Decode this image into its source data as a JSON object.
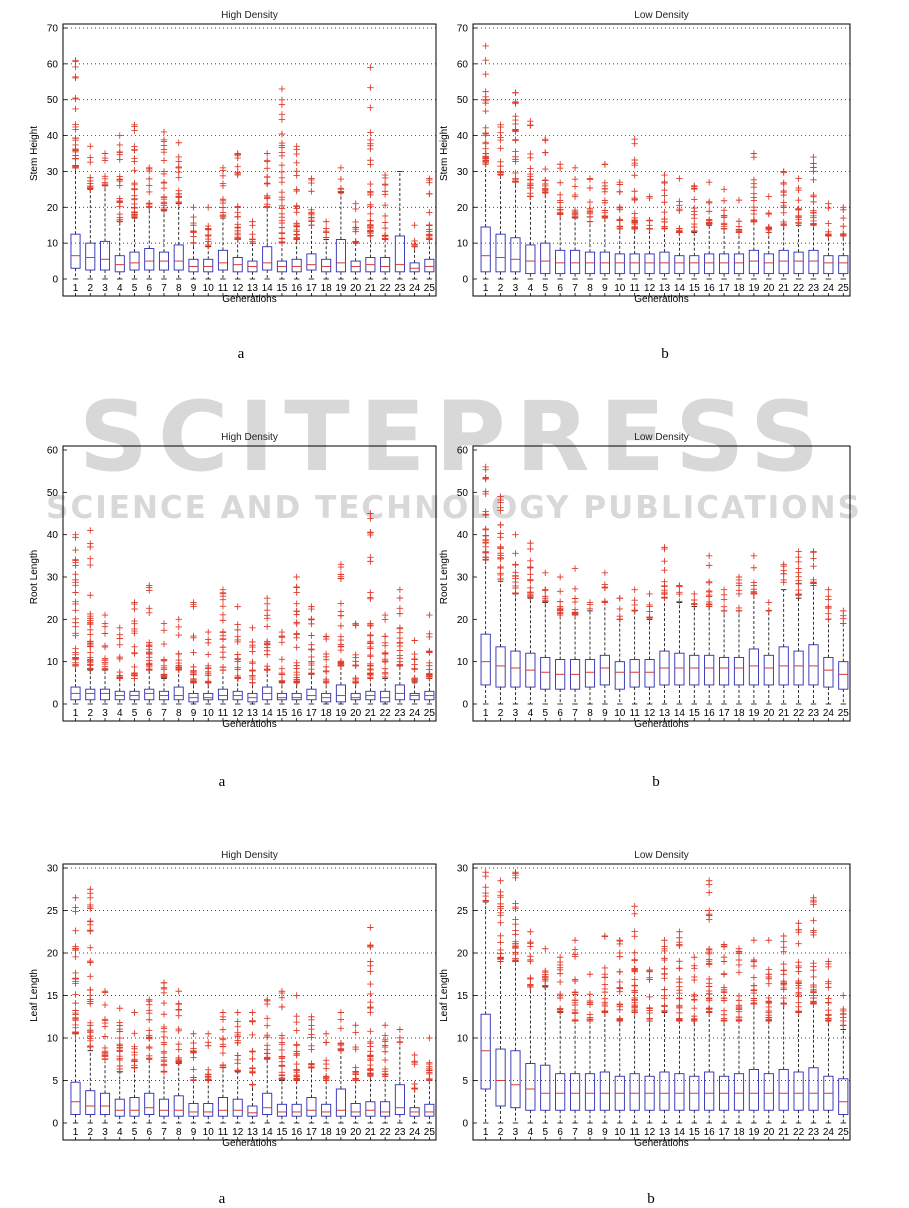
{
  "watermark": {
    "name": "SCITEPRESS",
    "tagline": "SCIENCE AND TECHNOLOGY PUBLICATIONS"
  },
  "colors": {
    "box": "#2b2bb5",
    "median": "#d33a3a",
    "outlier": "#e03c2c",
    "whisker": "#000000",
    "grid": "#000000",
    "watermark": "#d8d8d8"
  },
  "chart_data": [
    {
      "type": "boxplot",
      "panel": "a",
      "title": "High Density",
      "xlabel": "Generations",
      "ylabel": "Stem Height",
      "categories": [
        1,
        2,
        3,
        4,
        5,
        6,
        7,
        8,
        9,
        10,
        11,
        12,
        13,
        14,
        15,
        16,
        17,
        18,
        19,
        20,
        21,
        22,
        23,
        24,
        25
      ],
      "ylim": [
        0,
        70
      ],
      "yticks": [
        0,
        10,
        20,
        30,
        40,
        50,
        60,
        70
      ],
      "grid": "horizontal dotted",
      "q1": [
        3.0,
        2.5,
        2.5,
        2.0,
        2.5,
        2.5,
        2.5,
        2.5,
        2.0,
        2.0,
        2.5,
        2.0,
        2.0,
        2.5,
        2.0,
        2.0,
        2.5,
        2.0,
        2.0,
        2.0,
        2.0,
        2.0,
        2.0,
        2.0,
        2.0
      ],
      "median": [
        6.5,
        6.0,
        5.5,
        4.0,
        4.5,
        5.0,
        5.0,
        5.0,
        3.5,
        3.5,
        4.5,
        4.0,
        3.5,
        4.5,
        3.5,
        3.5,
        4.0,
        3.5,
        4.5,
        3.5,
        4.0,
        3.5,
        4.0,
        3.0,
        3.5
      ],
      "q3": [
        12.5,
        10.0,
        10.5,
        6.5,
        7.5,
        8.5,
        7.5,
        9.5,
        5.5,
        5.5,
        8.0,
        6.0,
        5.0,
        9.0,
        5.0,
        5.5,
        7.0,
        5.5,
        11.0,
        5.0,
        6.0,
        6.0,
        12.0,
        4.5,
        5.5
      ],
      "whisker_low": [
        0,
        0,
        0,
        0,
        0,
        0,
        0,
        0,
        0,
        0,
        0,
        0,
        0,
        0,
        0,
        0,
        0,
        0,
        0,
        0,
        0,
        0,
        0,
        0,
        0
      ],
      "whisker_high": [
        31,
        25,
        26,
        16,
        17,
        20,
        19,
        21,
        10,
        9,
        17,
        11,
        10,
        20,
        10,
        11,
        15,
        11,
        24,
        10,
        12,
        11,
        30,
        9,
        11
      ],
      "outlier_max": [
        61,
        37,
        35,
        40,
        43,
        31,
        41,
        38,
        20,
        20,
        31,
        35,
        16,
        35,
        53,
        37,
        28,
        16,
        31,
        21,
        59,
        29,
        30,
        15,
        28
      ]
    },
    {
      "type": "boxplot",
      "panel": "b",
      "title": "Low Density",
      "xlabel": "Generations",
      "ylabel": "Stem Height",
      "categories": [
        1,
        2,
        3,
        4,
        5,
        6,
        7,
        8,
        9,
        10,
        11,
        12,
        13,
        14,
        15,
        16,
        17,
        18,
        19,
        20,
        21,
        22,
        23,
        24,
        25
      ],
      "ylim": [
        0,
        70
      ],
      "yticks": [
        0,
        10,
        20,
        30,
        40,
        50,
        60,
        70
      ],
      "grid": "horizontal dotted",
      "q1": [
        2.0,
        2.0,
        2.0,
        1.5,
        1.5,
        1.5,
        1.5,
        1.5,
        1.5,
        1.5,
        1.5,
        1.5,
        1.5,
        1.5,
        1.5,
        1.5,
        1.5,
        1.5,
        1.5,
        1.5,
        1.5,
        1.5,
        1.5,
        1.5,
        1.5
      ],
      "median": [
        6.5,
        6.0,
        5.5,
        5.0,
        5.0,
        4.5,
        4.5,
        4.5,
        4.5,
        4.5,
        4.5,
        4.5,
        4.5,
        4.5,
        4.5,
        4.5,
        4.5,
        4.5,
        5.0,
        4.5,
        5.0,
        5.0,
        5.0,
        4.5,
        4.5
      ],
      "q3": [
        14.5,
        12.5,
        11.5,
        9.5,
        10.0,
        8.0,
        8.0,
        7.5,
        7.5,
        7.0,
        7.0,
        7.0,
        7.5,
        6.5,
        6.5,
        7.0,
        7.0,
        7.0,
        8.0,
        7.0,
        8.0,
        7.5,
        8.0,
        6.5,
        6.5
      ],
      "whisker_low": [
        0,
        0,
        0,
        0,
        0,
        0,
        0,
        0,
        0,
        0,
        0,
        0,
        0,
        0,
        0,
        0,
        0,
        0,
        0,
        0,
        0,
        0,
        0,
        0,
        0
      ],
      "whisker_high": [
        32,
        29,
        27,
        23,
        24,
        18,
        17,
        16,
        17,
        14,
        14,
        14,
        14,
        13,
        13,
        15,
        14,
        13,
        16,
        13,
        15,
        15,
        15,
        12,
        12
      ],
      "outlier_max": [
        65,
        43,
        52,
        44,
        39,
        32,
        31,
        28,
        32,
        27,
        39,
        23,
        29,
        28,
        26,
        27,
        25,
        22,
        35,
        23,
        30,
        28,
        34,
        21,
        20
      ]
    },
    {
      "type": "boxplot",
      "panel": "a",
      "title": "High Density",
      "xlabel": "Generations",
      "ylabel": "Root Length",
      "categories": [
        1,
        2,
        3,
        4,
        5,
        6,
        7,
        8,
        9,
        10,
        11,
        12,
        13,
        14,
        15,
        16,
        17,
        18,
        19,
        20,
        21,
        22,
        23,
        24,
        25
      ],
      "ylim": [
        0,
        60
      ],
      "yticks": [
        0,
        10,
        20,
        30,
        40,
        50,
        60
      ],
      "grid": "none",
      "q1": [
        1.0,
        1.0,
        1.0,
        1.0,
        1.0,
        1.0,
        1.0,
        1.0,
        0.5,
        1.0,
        1.0,
        1.0,
        0.5,
        1.0,
        1.0,
        1.0,
        1.0,
        0.5,
        0.5,
        1.0,
        1.0,
        0.5,
        1.0,
        1.0,
        1.0
      ],
      "median": [
        2.5,
        2.5,
        2.5,
        2.0,
        2.0,
        2.5,
        2.0,
        2.0,
        1.5,
        1.5,
        2.0,
        2.0,
        1.5,
        2.5,
        1.5,
        1.5,
        2.0,
        1.5,
        2.0,
        1.5,
        2.0,
        1.5,
        2.5,
        2.0,
        2.0
      ],
      "q3": [
        4.0,
        3.5,
        3.5,
        3.0,
        3.0,
        3.5,
        3.0,
        4.0,
        2.5,
        2.5,
        3.5,
        3.0,
        2.5,
        4.0,
        2.5,
        2.5,
        3.5,
        2.5,
        4.5,
        2.5,
        3.0,
        3.0,
        4.5,
        2.5,
        3.0
      ],
      "whisker_low": [
        0,
        0,
        0,
        0,
        0,
        0,
        0,
        0,
        0,
        0,
        0,
        0,
        0,
        0,
        0,
        0,
        0,
        0,
        0,
        0,
        0,
        0,
        0,
        0,
        0
      ],
      "whisker_high": [
        9,
        8,
        8,
        6,
        6,
        8,
        6,
        8,
        5,
        5,
        8,
        6,
        5,
        8,
        5,
        5,
        7,
        5,
        9,
        5,
        6,
        6,
        9,
        5,
        6
      ],
      "outlier_max": [
        40,
        41,
        21,
        18,
        24,
        28,
        19,
        20,
        24,
        17,
        27,
        23,
        18,
        25,
        17,
        30,
        23,
        16,
        33,
        19,
        45,
        21,
        27,
        15,
        21
      ]
    },
    {
      "type": "boxplot",
      "panel": "b",
      "title": "Low Density",
      "xlabel": "Generations",
      "ylabel": "Root Length",
      "categories": [
        1,
        2,
        3,
        4,
        5,
        6,
        7,
        8,
        9,
        10,
        11,
        12,
        13,
        14,
        15,
        16,
        17,
        18,
        19,
        20,
        21,
        22,
        23,
        24,
        25
      ],
      "ylim": [
        0,
        60
      ],
      "yticks": [
        0,
        10,
        20,
        30,
        40,
        50,
        60
      ],
      "grid": "none",
      "q1": [
        4.5,
        4.0,
        4.0,
        4.0,
        3.5,
        3.5,
        3.5,
        4.0,
        4.5,
        3.5,
        4.0,
        4.0,
        4.5,
        4.5,
        4.5,
        4.5,
        4.5,
        4.5,
        4.5,
        4.5,
        4.5,
        4.5,
        4.5,
        4.0,
        3.5
      ],
      "median": [
        10.0,
        9.0,
        8.5,
        8.0,
        7.5,
        7.0,
        7.0,
        7.5,
        8.5,
        7.5,
        7.5,
        7.5,
        8.5,
        8.5,
        8.5,
        8.5,
        8.5,
        8.5,
        9.0,
        8.5,
        9.0,
        9.0,
        9.0,
        8.0,
        7.0
      ],
      "q3": [
        16.5,
        13.5,
        12.5,
        12.0,
        11.0,
        10.5,
        10.5,
        10.5,
        11.5,
        10.0,
        10.5,
        10.5,
        12.5,
        12.0,
        11.5,
        11.5,
        11.0,
        11.0,
        13.0,
        11.5,
        13.5,
        12.5,
        14.0,
        11.0,
        10.0
      ],
      "whisker_low": [
        0,
        0,
        0,
        0,
        0,
        0,
        0,
        0,
        0,
        0,
        0,
        0,
        0,
        0,
        0,
        0,
        0,
        0,
        0,
        0,
        0,
        0,
        0,
        0,
        0
      ],
      "whisker_high": [
        34,
        29,
        26,
        25,
        24,
        21,
        21,
        22,
        24,
        20,
        22,
        20,
        25,
        24,
        23,
        23,
        22,
        22,
        26,
        22,
        27,
        25,
        28,
        20,
        19
      ],
      "outlier_max": [
        56,
        49,
        40,
        38,
        31,
        30,
        32,
        24,
        31,
        25,
        27,
        26,
        37,
        28,
        26,
        35,
        27,
        30,
        35,
        24,
        33,
        36,
        36,
        27,
        22
      ]
    },
    {
      "type": "boxplot",
      "panel": "a",
      "title": "High Density",
      "xlabel": "Generations",
      "ylabel": "Leaf Length",
      "categories": [
        1,
        2,
        3,
        4,
        5,
        6,
        7,
        8,
        9,
        10,
        11,
        12,
        13,
        14,
        15,
        16,
        17,
        18,
        19,
        20,
        21,
        22,
        23,
        24,
        25
      ],
      "ylim": [
        0,
        30
      ],
      "yticks": [
        0,
        5,
        10,
        15,
        20,
        25,
        30
      ],
      "grid": "horizontal dotted",
      "q1": [
        1.0,
        1.0,
        1.0,
        0.8,
        0.8,
        1.0,
        0.8,
        0.8,
        0.8,
        0.8,
        0.8,
        0.8,
        0.8,
        1.0,
        0.8,
        0.8,
        0.8,
        0.8,
        0.8,
        0.8,
        0.8,
        0.8,
        1.0,
        0.8,
        0.8
      ],
      "median": [
        2.5,
        2.0,
        2.0,
        1.5,
        1.5,
        1.8,
        1.5,
        1.5,
        1.3,
        1.3,
        1.5,
        1.5,
        1.2,
        1.8,
        1.3,
        1.3,
        1.5,
        1.3,
        1.5,
        1.3,
        1.5,
        1.3,
        1.8,
        1.3,
        1.3
      ],
      "q3": [
        4.8,
        3.8,
        3.5,
        2.8,
        3.0,
        3.5,
        2.8,
        3.2,
        2.3,
        2.3,
        3.0,
        2.8,
        2.0,
        3.5,
        2.2,
        2.2,
        3.0,
        2.2,
        4.0,
        2.3,
        2.5,
        2.5,
        4.5,
        1.8,
        2.2
      ],
      "whisker_low": [
        0,
        0,
        0,
        0,
        0,
        0,
        0,
        0,
        0,
        0,
        0,
        0,
        0,
        0,
        0,
        0,
        0,
        0,
        0,
        0,
        0,
        0,
        0,
        0,
        0
      ],
      "whisker_high": [
        10.5,
        8.5,
        7.5,
        6.0,
        6.5,
        7.5,
        6.0,
        7.0,
        5.0,
        5.0,
        6.5,
        6.0,
        4.5,
        7.5,
        5.0,
        5.0,
        6.5,
        5.0,
        8.5,
        5.0,
        5.5,
        5.5,
        9.5,
        4.0,
        5.0
      ],
      "outlier_max": [
        26.5,
        27.5,
        15.5,
        13.5,
        13.0,
        14.5,
        16.5,
        15.5,
        10.5,
        10.5,
        13.0,
        13.0,
        13.0,
        14.5,
        15.5,
        15.0,
        12.5,
        10.5,
        13.0,
        11.5,
        23.0,
        11.5,
        11.0,
        8.0,
        10.0
      ]
    },
    {
      "type": "boxplot",
      "panel": "b",
      "title": "Low Density",
      "xlabel": "Generations",
      "ylabel": "Leaf Length",
      "categories": [
        1,
        2,
        3,
        4,
        5,
        6,
        7,
        8,
        9,
        10,
        11,
        12,
        13,
        14,
        15,
        16,
        17,
        18,
        19,
        20,
        21,
        22,
        23,
        24,
        25
      ],
      "ylim": [
        0,
        30
      ],
      "yticks": [
        0,
        5,
        10,
        15,
        20,
        25,
        30
      ],
      "grid": "horizontal dotted",
      "q1": [
        4.0,
        2.0,
        1.8,
        1.5,
        1.5,
        1.5,
        1.5,
        1.5,
        1.5,
        1.5,
        1.5,
        1.5,
        1.5,
        1.5,
        1.5,
        1.5,
        1.5,
        1.5,
        1.5,
        1.5,
        1.5,
        1.5,
        1.5,
        1.5,
        1.0
      ],
      "median": [
        8.5,
        5.0,
        4.5,
        4.0,
        3.5,
        3.5,
        3.5,
        3.5,
        3.5,
        3.5,
        3.5,
        3.5,
        3.5,
        3.5,
        3.5,
        3.5,
        3.5,
        3.5,
        3.5,
        3.5,
        3.5,
        3.5,
        3.5,
        3.5,
        2.5
      ],
      "q3": [
        12.8,
        8.7,
        8.5,
        7.0,
        6.8,
        5.8,
        5.8,
        5.8,
        6.0,
        5.5,
        5.8,
        5.5,
        6.0,
        5.8,
        5.5,
        6.0,
        5.5,
        5.8,
        6.3,
        5.8,
        6.3,
        6.0,
        6.5,
        5.5,
        5.2
      ],
      "whisker_low": [
        0,
        0,
        0,
        0,
        0,
        0,
        0,
        0,
        0,
        0,
        0,
        0,
        0,
        0,
        0,
        0,
        0,
        0,
        0,
        0,
        0,
        0,
        0,
        0,
        0
      ],
      "whisker_high": [
        26,
        19,
        19,
        16,
        16,
        13,
        12,
        12,
        13,
        12,
        13,
        12,
        13,
        12,
        12,
        13,
        12,
        12,
        14,
        12,
        14,
        13,
        14,
        12,
        11
      ],
      "outlier_max": [
        29.5,
        28.5,
        29.5,
        22.5,
        20.5,
        19.5,
        21.5,
        17.5,
        22.0,
        21.5,
        25.5,
        18.0,
        21.5,
        22.5,
        19.5,
        28.5,
        21.0,
        20.5,
        21.5,
        21.5,
        22.0,
        23.5,
        26.5,
        19.0,
        15.0
      ]
    }
  ]
}
